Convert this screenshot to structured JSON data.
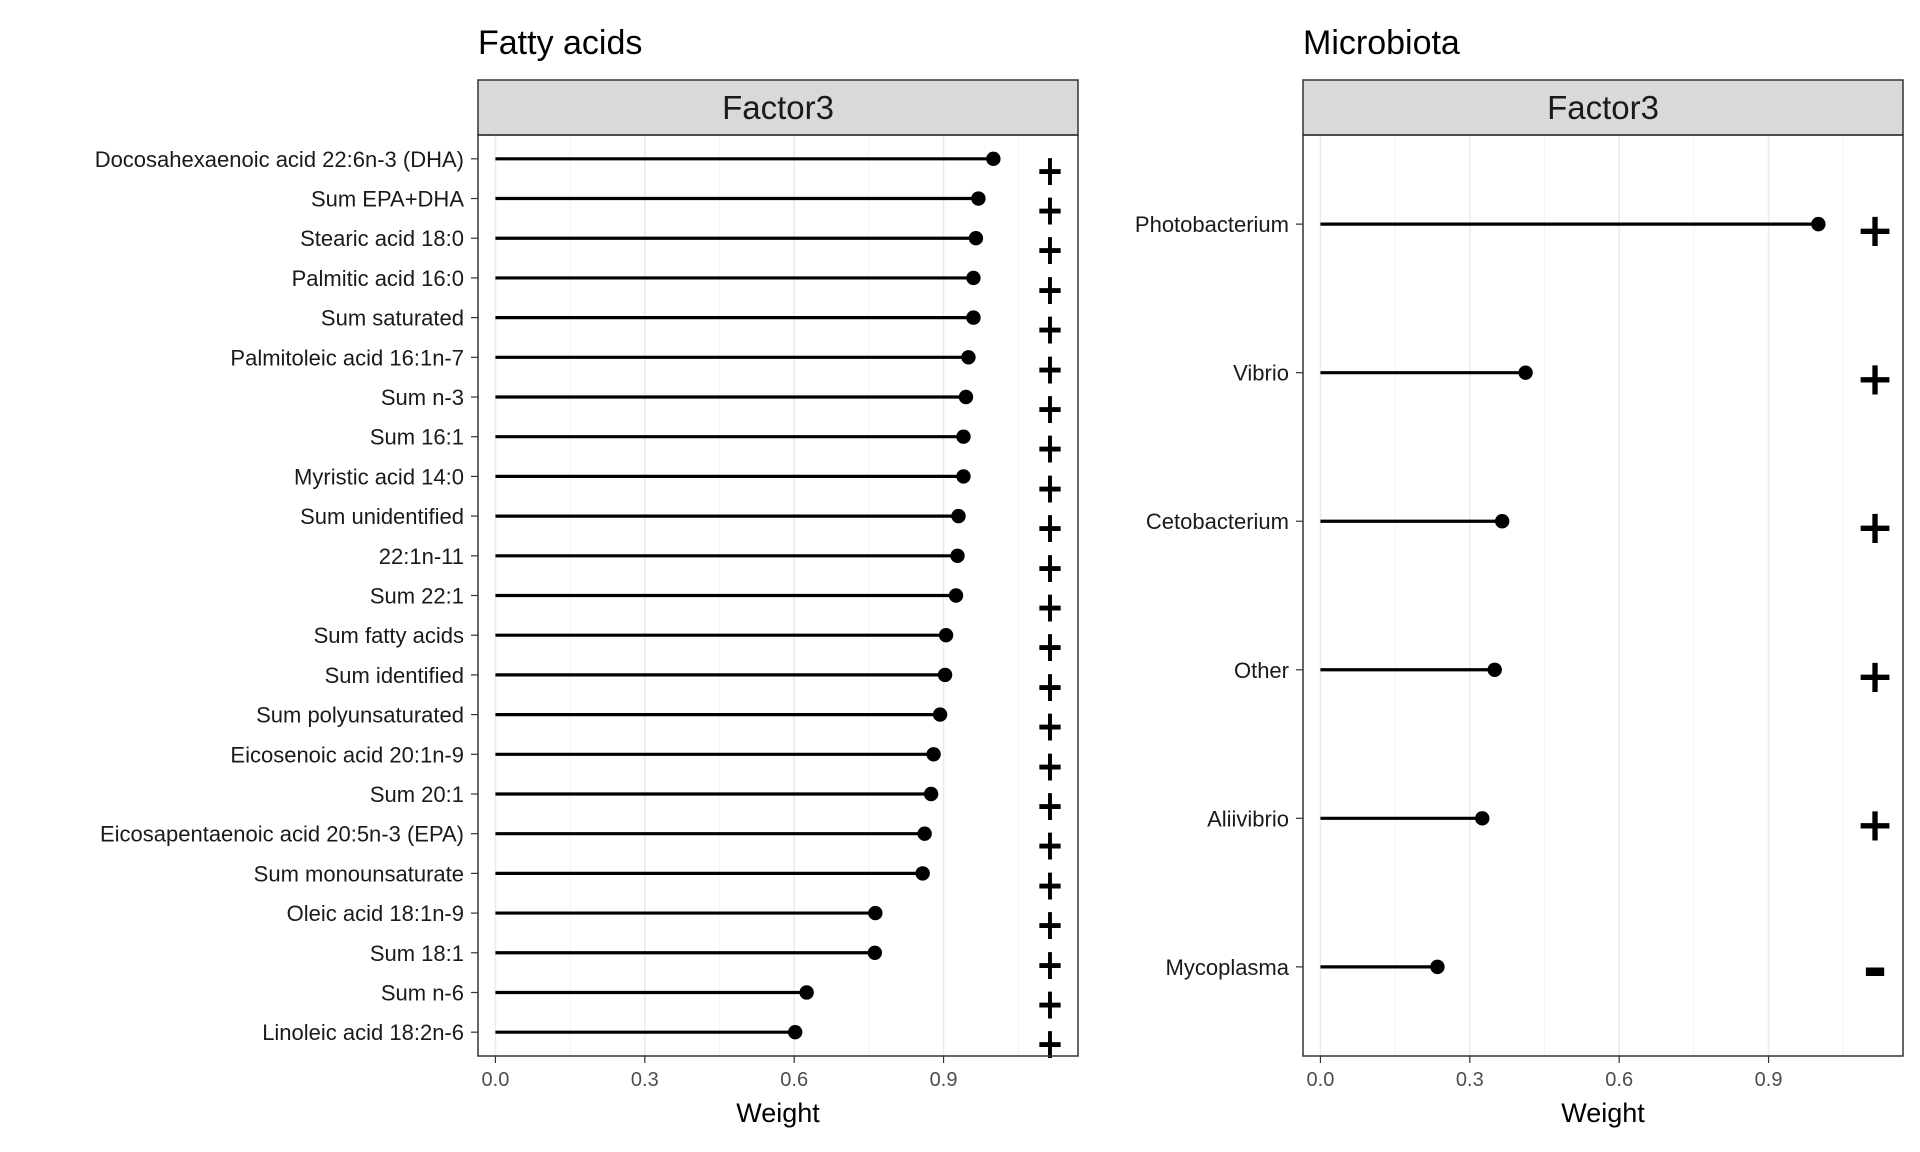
{
  "chart_data": [
    {
      "type": "lollipop",
      "title": "Fatty acids",
      "facet": "Factor3",
      "xlabel": "Weight",
      "xlim": [
        -0.035,
        1.17
      ],
      "xticks": [
        "0.0",
        "0.3",
        "0.6",
        "0.9"
      ],
      "grid": true,
      "categories": [
        "Docosahexaenoic acid 22:6n-3 (DHA)",
        "Sum EPA+DHA",
        "Stearic acid 18:0",
        "Palmitic acid 16:0",
        "Sum saturated",
        "Palmitoleic acid 16:1n-7",
        "Sum n-3",
        "Sum 16:1",
        "Myristic acid 14:0",
        "Sum unidentified",
        "22:1n-11",
        "Sum 22:1",
        "Sum fatty acids",
        "Sum identified",
        "Sum polyunsaturated",
        "Eicosenoic acid 20:1n-9",
        "Sum 20:1",
        "Eicosapentaenoic acid 20:5n-3 (EPA)",
        "Sum monounsaturate",
        "Oleic acid 18:1n-9",
        "Sum 18:1",
        "Sum n-6",
        "Linoleic acid 18:2n-6"
      ],
      "values": [
        1.0,
        0.97,
        0.965,
        0.96,
        0.96,
        0.95,
        0.945,
        0.94,
        0.94,
        0.93,
        0.928,
        0.925,
        0.905,
        0.903,
        0.893,
        0.88,
        0.875,
        0.862,
        0.858,
        0.763,
        0.762,
        0.625,
        0.602
      ],
      "signs": [
        "+",
        "+",
        "+",
        "+",
        "+",
        "+",
        "+",
        "+",
        "+",
        "+",
        "+",
        "+",
        "+",
        "+",
        "+",
        "+",
        "+",
        "+",
        "+",
        "+",
        "+",
        "+",
        "+"
      ]
    },
    {
      "type": "lollipop",
      "title": "Microbiota",
      "facet": "Factor3",
      "xlabel": "Weight",
      "xlim": [
        -0.035,
        1.17
      ],
      "xticks": [
        "0.0",
        "0.3",
        "0.6",
        "0.9"
      ],
      "grid": true,
      "categories": [
        "Photobacterium",
        "Vibrio",
        "Cetobacterium",
        "Other",
        "Aliivibrio",
        "Mycoplasma"
      ],
      "values": [
        1.0,
        0.412,
        0.365,
        0.35,
        0.325,
        0.235
      ],
      "signs": [
        "+",
        "+",
        "+",
        "+",
        "+",
        "-"
      ]
    }
  ]
}
